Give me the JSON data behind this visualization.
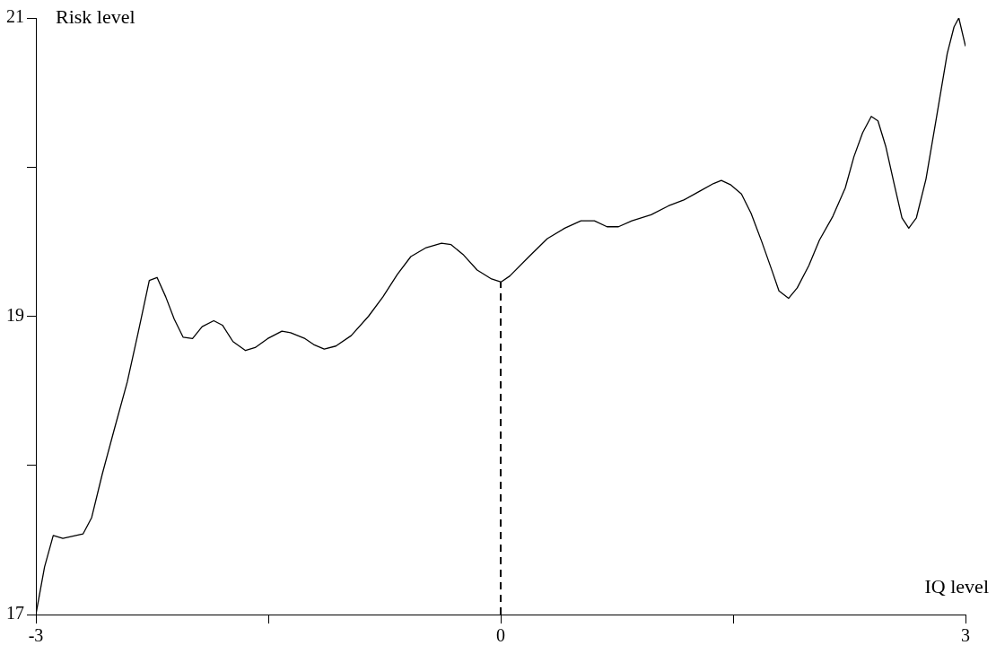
{
  "chart_data": {
    "type": "line",
    "xlabel": "IQ level",
    "ylabel": "Risk level",
    "x": [
      -3,
      -2.944,
      -2.888,
      -2.826,
      -2.696,
      -2.64,
      -2.572,
      -2.497,
      -2.41,
      -2.342,
      -2.268,
      -2.218,
      -2.162,
      -2.107,
      -2.05,
      -1.989,
      -1.927,
      -1.852,
      -1.796,
      -1.728,
      -1.647,
      -1.585,
      -1.504,
      -1.412,
      -1.356,
      -1.263,
      -1.207,
      -1.139,
      -1.064,
      -0.965,
      -0.853,
      -0.76,
      -0.667,
      -0.58,
      -0.481,
      -0.382,
      -0.32,
      -0.239,
      -0.152,
      -0.059,
      0.003,
      0.059,
      0.183,
      0.301,
      0.413,
      0.518,
      0.605,
      0.686,
      0.76,
      0.847,
      0.971,
      1.083,
      1.182,
      1.287,
      1.374,
      1.424,
      1.486,
      1.554,
      1.616,
      1.685,
      1.753,
      1.796,
      1.858,
      1.914,
      1.989,
      2.057,
      2.144,
      2.224,
      2.28,
      2.336,
      2.392,
      2.435,
      2.485,
      2.541,
      2.59,
      2.634,
      2.683,
      2.745,
      2.814,
      2.882,
      2.926,
      2.957,
      3
    ],
    "series": [
      {
        "color": "#000000",
        "values": [
          17,
          17.32,
          17.53,
          17.51,
          17.54,
          17.65,
          17.94,
          18.23,
          18.56,
          18.88,
          19.24,
          19.26,
          19.13,
          18.98,
          18.86,
          18.85,
          18.93,
          18.97,
          18.94,
          18.83,
          18.77,
          18.79,
          18.85,
          18.9,
          18.89,
          18.85,
          18.81,
          18.78,
          18.8,
          18.87,
          19,
          19.13,
          19.28,
          19.4,
          19.46,
          19.49,
          19.48,
          19.41,
          19.31,
          19.25,
          19.23,
          19.27,
          19.4,
          19.52,
          19.59,
          19.64,
          19.64,
          19.6,
          19.6,
          19.64,
          19.68,
          19.74,
          19.78,
          19.84,
          19.89,
          19.91,
          19.88,
          19.82,
          19.69,
          19.5,
          19.3,
          19.17,
          19.12,
          19.19,
          19.34,
          19.51,
          19.67,
          19.86,
          20.07,
          20.23,
          20.34,
          20.31,
          20.14,
          19.88,
          19.66,
          19.59,
          19.66,
          19.92,
          20.34,
          20.76,
          20.94,
          21,
          20.81
        ]
      }
    ],
    "xlim": [
      -3,
      3
    ],
    "xticks": [
      -3,
      {
        "value": -1.5,
        "label": null
      },
      0,
      {
        "value": 1.5,
        "label": null
      },
      3
    ],
    "ylim": [
      17,
      21
    ],
    "yticks": [
      17,
      {
        "value": 18,
        "label": null
      },
      19,
      {
        "value": 20,
        "label": null
      },
      21
    ],
    "ref_lines": [
      {
        "axis": "x",
        "value": 0,
        "color": "#000000",
        "line_style": "dashed"
      }
    ],
    "grid": false,
    "legend": false,
    "marker": "none",
    "line_style": "solid"
  }
}
